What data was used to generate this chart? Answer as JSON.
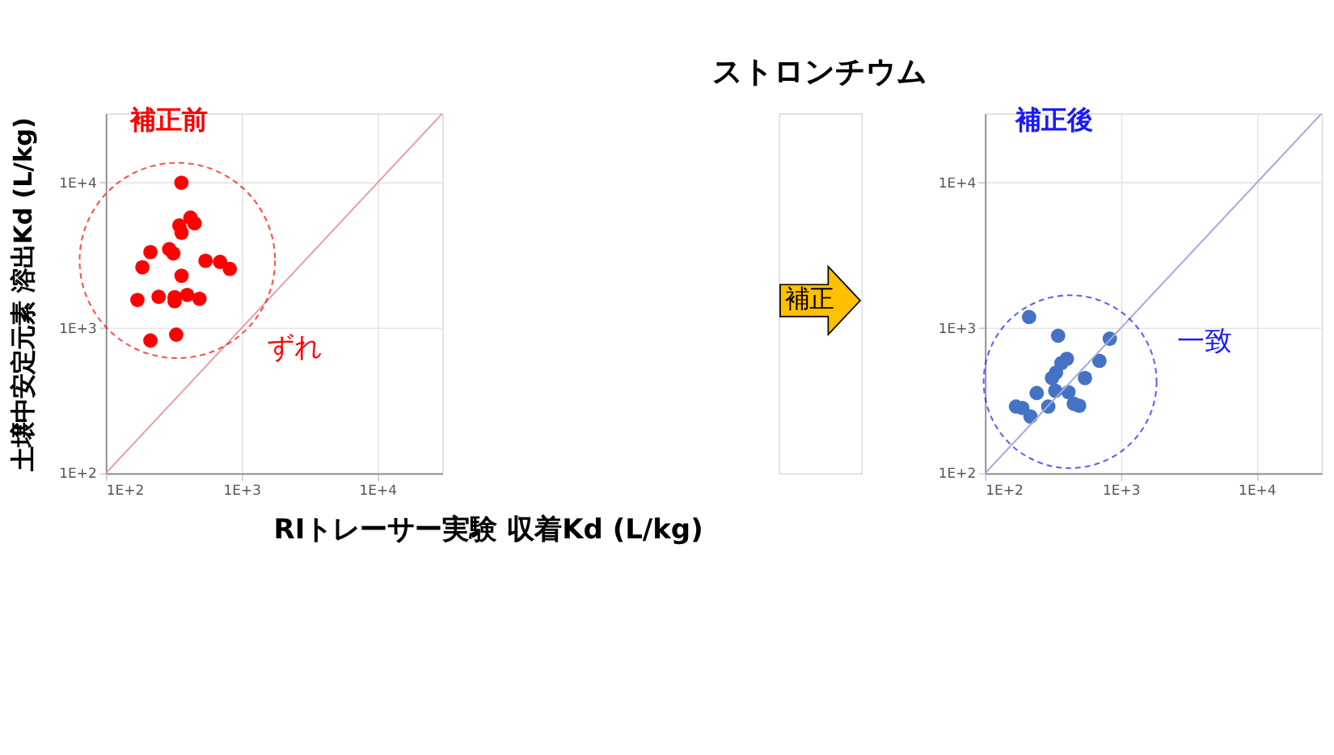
{
  "chart_data": [
    {
      "type": "scatter",
      "title": "補正前",
      "ylabel": "土壌中安定元素 溶出Kd (L/kg)",
      "xlabel": "RIトレーサー実験 収着Kd (L/kg)",
      "annotations": [
        "ストロンチウム",
        "ずれ"
      ],
      "log": "xy",
      "grid": true,
      "xlim": [
        100,
        30000
      ],
      "ylim": [
        100,
        30000
      ],
      "xticks": [
        {
          "value": 100,
          "label": "1E+2"
        },
        {
          "value": 1000,
          "label": "1E+3"
        },
        {
          "value": 10000,
          "label": "1E+4"
        }
      ],
      "yticks": [
        {
          "value": 100,
          "label": "1E+2"
        },
        {
          "value": 1000,
          "label": "1E+3"
        },
        {
          "value": 10000,
          "label": "1E+4"
        }
      ],
      "series": [
        {
          "marker": "circle",
          "color": "#ff0000",
          "x": [
            360,
            420,
            450,
            348,
            361,
            213,
            293,
            314,
            186,
            542,
            693,
            818,
            361,
            171,
            245,
            321,
            321,
            397,
            489,
            213,
            330
          ],
          "values": [
            10000,
            5750,
            5260,
            5080,
            4530,
            3330,
            3490,
            3260,
            2620,
            2900,
            2850,
            2550,
            2290,
            1560,
            1640,
            1630,
            1530,
            1690,
            1590,
            820,
            900
          ]
        },
        {
          "type": "line",
          "color": "#e8a0a8",
          "x": [
            100,
            30000
          ],
          "values": [
            100,
            30000
          ]
        }
      ]
    },
    {
      "type": "scatter",
      "title": "補正後",
      "annotations": [
        "補正",
        "一致"
      ],
      "log": "xy",
      "grid": true,
      "xlim": [
        100,
        30000
      ],
      "ylim": [
        100,
        30000
      ],
      "xticks": [
        {
          "value": 100,
          "label": "1E+2"
        },
        {
          "value": 1000,
          "label": "1E+3"
        },
        {
          "value": 10000,
          "label": "1E+4"
        }
      ],
      "yticks": [
        {
          "value": 100,
          "label": "1E+2"
        },
        {
          "value": 1000,
          "label": "1E+3"
        },
        {
          "value": 10000,
          "label": "1E+4"
        }
      ],
      "series": [
        {
          "marker": "circle",
          "color": "#4472c4",
          "x": [
            211,
            345,
            828,
            695,
            400,
            365,
            333,
            311,
            544,
            240,
            329,
            411,
            450,
            493,
            292,
            169,
            188,
            216
          ],
          "values": [
            1190,
            885,
            844,
            594,
            614,
            574,
            494,
            453,
            453,
            357,
            370,
            362,
            301,
            292,
            288,
            288,
            282,
            246
          ]
        },
        {
          "type": "line",
          "color": "#a8a8e0",
          "x": [
            100,
            30000
          ],
          "values": [
            100,
            30000
          ]
        }
      ]
    }
  ]
}
